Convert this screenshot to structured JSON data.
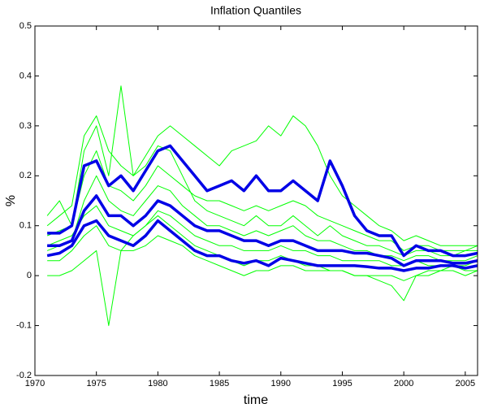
{
  "chart_data": {
    "type": "line",
    "title": "Inflation Quantiles",
    "x_label": "time",
    "y_label": "%",
    "x": [
      1971,
      1972,
      1973,
      1974,
      1975,
      1976,
      1977,
      1978,
      1979,
      1980,
      1981,
      1982,
      1983,
      1984,
      1985,
      1986,
      1987,
      1988,
      1989,
      1990,
      1991,
      1992,
      1993,
      1994,
      1995,
      1996,
      1997,
      1998,
      1999,
      2000,
      2001,
      2002,
      2003,
      2004,
      2005,
      2006
    ],
    "series": [
      {
        "color": "#00ff00",
        "line_width": 1,
        "values": [
          0.12,
          0.15,
          0.1,
          0.25,
          0.3,
          0.2,
          0.38,
          0.2,
          0.22,
          0.26,
          0.25,
          0.2,
          0.15,
          0.13,
          0.12,
          0.11,
          0.1,
          0.12,
          0.1,
          0.1,
          0.12,
          0.1,
          0.08,
          0.1,
          0.08,
          0.07,
          0.06,
          0.06,
          0.05,
          0.04,
          0.05,
          0.05,
          0.04,
          0.04,
          0.05,
          0.05
        ]
      },
      {
        "color": "#00ff00",
        "line_width": 1,
        "values": [
          0,
          0,
          0.01,
          0.03,
          0.05,
          -0.1,
          0.05,
          0.08,
          0.1,
          0.12,
          0.1,
          0.08,
          0.06,
          0.05,
          0.04,
          0.03,
          0.02,
          0.03,
          0.03,
          0.04,
          0.03,
          0.02,
          0.02,
          0.01,
          0.01,
          0,
          0,
          -0.01,
          -0.02,
          -0.05,
          0,
          0.01,
          0.01,
          0.02,
          0.01,
          0.01
        ]
      },
      {
        "color": "#00ff00",
        "line_width": 1,
        "values": [
          0.1,
          0.12,
          0.14,
          0.28,
          0.32,
          0.25,
          0.22,
          0.2,
          0.24,
          0.28,
          0.3,
          0.28,
          0.26,
          0.24,
          0.22,
          0.25,
          0.26,
          0.27,
          0.3,
          0.28,
          0.32,
          0.3,
          0.26,
          0.2,
          0.16,
          0.14,
          0.12,
          0.1,
          0.09,
          0.07,
          0.08,
          0.07,
          0.06,
          0.06,
          0.06,
          0.06
        ]
      },
      {
        "color": "#00ff00",
        "line_width": 1,
        "values": [
          0.05,
          0.06,
          0.07,
          0.15,
          0.2,
          0.15,
          0.13,
          0.12,
          0.15,
          0.18,
          0.17,
          0.14,
          0.12,
          0.1,
          0.1,
          0.09,
          0.08,
          0.09,
          0.08,
          0.09,
          0.1,
          0.08,
          0.07,
          0.07,
          0.06,
          0.05,
          0.05,
          0.04,
          0.04,
          0.03,
          0.04,
          0.04,
          0.03,
          0.03,
          0.03,
          0.04
        ]
      },
      {
        "color": "#00ff00",
        "line_width": 1,
        "values": [
          0.03,
          0.03,
          0.05,
          0.08,
          0.1,
          0.06,
          0.05,
          0.05,
          0.06,
          0.08,
          0.07,
          0.06,
          0.04,
          0.03,
          0.02,
          0.01,
          0,
          0.01,
          0.01,
          0.02,
          0.02,
          0.01,
          0.01,
          0.01,
          0.01,
          0,
          0,
          0,
          0,
          -0.01,
          0,
          0,
          0.01,
          0.01,
          0,
          0.01
        ]
      },
      {
        "color": "#00ff00",
        "line_width": 1,
        "values": [
          0.08,
          0.09,
          0.1,
          0.2,
          0.25,
          0.18,
          0.17,
          0.15,
          0.18,
          0.22,
          0.2,
          0.18,
          0.16,
          0.15,
          0.15,
          0.14,
          0.13,
          0.14,
          0.13,
          0.14,
          0.15,
          0.14,
          0.12,
          0.11,
          0.1,
          0.09,
          0.08,
          0.07,
          0.07,
          0.05,
          0.06,
          0.06,
          0.05,
          0.05,
          0.05,
          0.06
        ]
      },
      {
        "color": "#00ff00",
        "line_width": 1,
        "values": [
          0.06,
          0.07,
          0.08,
          0.12,
          0.14,
          0.1,
          0.09,
          0.08,
          0.1,
          0.13,
          0.12,
          0.1,
          0.08,
          0.07,
          0.06,
          0.06,
          0.05,
          0.05,
          0.05,
          0.06,
          0.05,
          0.05,
          0.04,
          0.04,
          0.03,
          0.03,
          0.03,
          0.03,
          0.02,
          0.02,
          0.03,
          0.02,
          0.02,
          0.02,
          0.02,
          0.03
        ]
      },
      {
        "color": "#0000e6",
        "line_width": 3.5,
        "values": [
          0.085,
          0.085,
          0.1,
          0.22,
          0.23,
          0.18,
          0.2,
          0.17,
          0.21,
          0.25,
          0.26,
          0.23,
          0.2,
          0.17,
          0.18,
          0.19,
          0.17,
          0.2,
          0.17,
          0.17,
          0.19,
          0.17,
          0.15,
          0.23,
          0.18,
          0.12,
          0.09,
          0.08,
          0.08,
          0.04,
          0.06,
          0.05,
          0.05,
          0.04,
          0.04,
          0.045
        ]
      },
      {
        "color": "#0000e6",
        "line_width": 3.5,
        "values": [
          0.06,
          0.06,
          0.07,
          0.13,
          0.16,
          0.12,
          0.12,
          0.1,
          0.12,
          0.15,
          0.14,
          0.12,
          0.1,
          0.09,
          0.09,
          0.08,
          0.07,
          0.07,
          0.06,
          0.07,
          0.07,
          0.06,
          0.05,
          0.05,
          0.05,
          0.045,
          0.045,
          0.04,
          0.035,
          0.02,
          0.03,
          0.03,
          0.03,
          0.025,
          0.025,
          0.03
        ]
      },
      {
        "color": "#0000e6",
        "line_width": 3.5,
        "values": [
          0.04,
          0.045,
          0.06,
          0.1,
          0.11,
          0.08,
          0.07,
          0.06,
          0.08,
          0.11,
          0.09,
          0.07,
          0.05,
          0.04,
          0.04,
          0.03,
          0.025,
          0.03,
          0.02,
          0.035,
          0.03,
          0.025,
          0.02,
          0.02,
          0.02,
          0.02,
          0.018,
          0.015,
          0.015,
          0.01,
          0.015,
          0.015,
          0.02,
          0.02,
          0.015,
          0.02
        ]
      }
    ],
    "xlim": [
      1970,
      2006
    ],
    "xticks": [
      1970,
      1975,
      1980,
      1985,
      1990,
      1995,
      2000,
      2005
    ],
    "ylim": [
      -0.2,
      0.5
    ],
    "yticks": [
      -0.2,
      -0.1,
      0,
      0.1,
      0.2,
      0.3,
      0.4,
      0.5
    ],
    "grid": false
  }
}
